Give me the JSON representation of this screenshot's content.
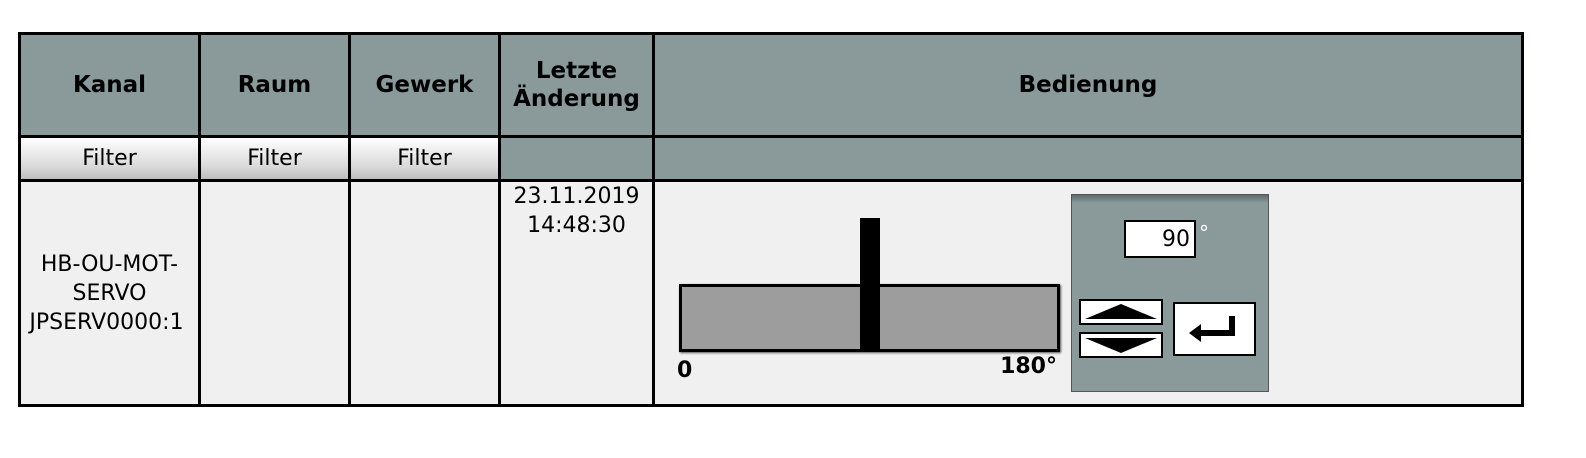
{
  "columns": {
    "kanal": "Kanal",
    "raum": "Raum",
    "gewerk": "Gewerk",
    "letzte_line1": "Letzte",
    "letzte_line2": "Änderung",
    "bedienung": "Bedienung"
  },
  "filters": {
    "kanal": "Filter",
    "raum": "Filter",
    "gewerk": "Filter"
  },
  "row": {
    "kanal_line1": "HB-OU-MOT-",
    "kanal_line2": "SERVO",
    "kanal_line3": "JPSERV0000:1",
    "raum": "",
    "gewerk": "",
    "date": "23.11.2019",
    "time": "14:48:30"
  },
  "control": {
    "slider_min_label": "0",
    "slider_max_label": "180°",
    "slider_min": 0,
    "slider_max": 180,
    "value": 90,
    "input_value": "90",
    "unit": "°"
  },
  "icons": {
    "up": "arrow-up-icon",
    "down": "arrow-down-icon",
    "enter": "enter-icon"
  },
  "colors": {
    "header_bg": "#8a9a9b",
    "row_bg": "#f0f0f0",
    "track": "#9d9d9d"
  }
}
